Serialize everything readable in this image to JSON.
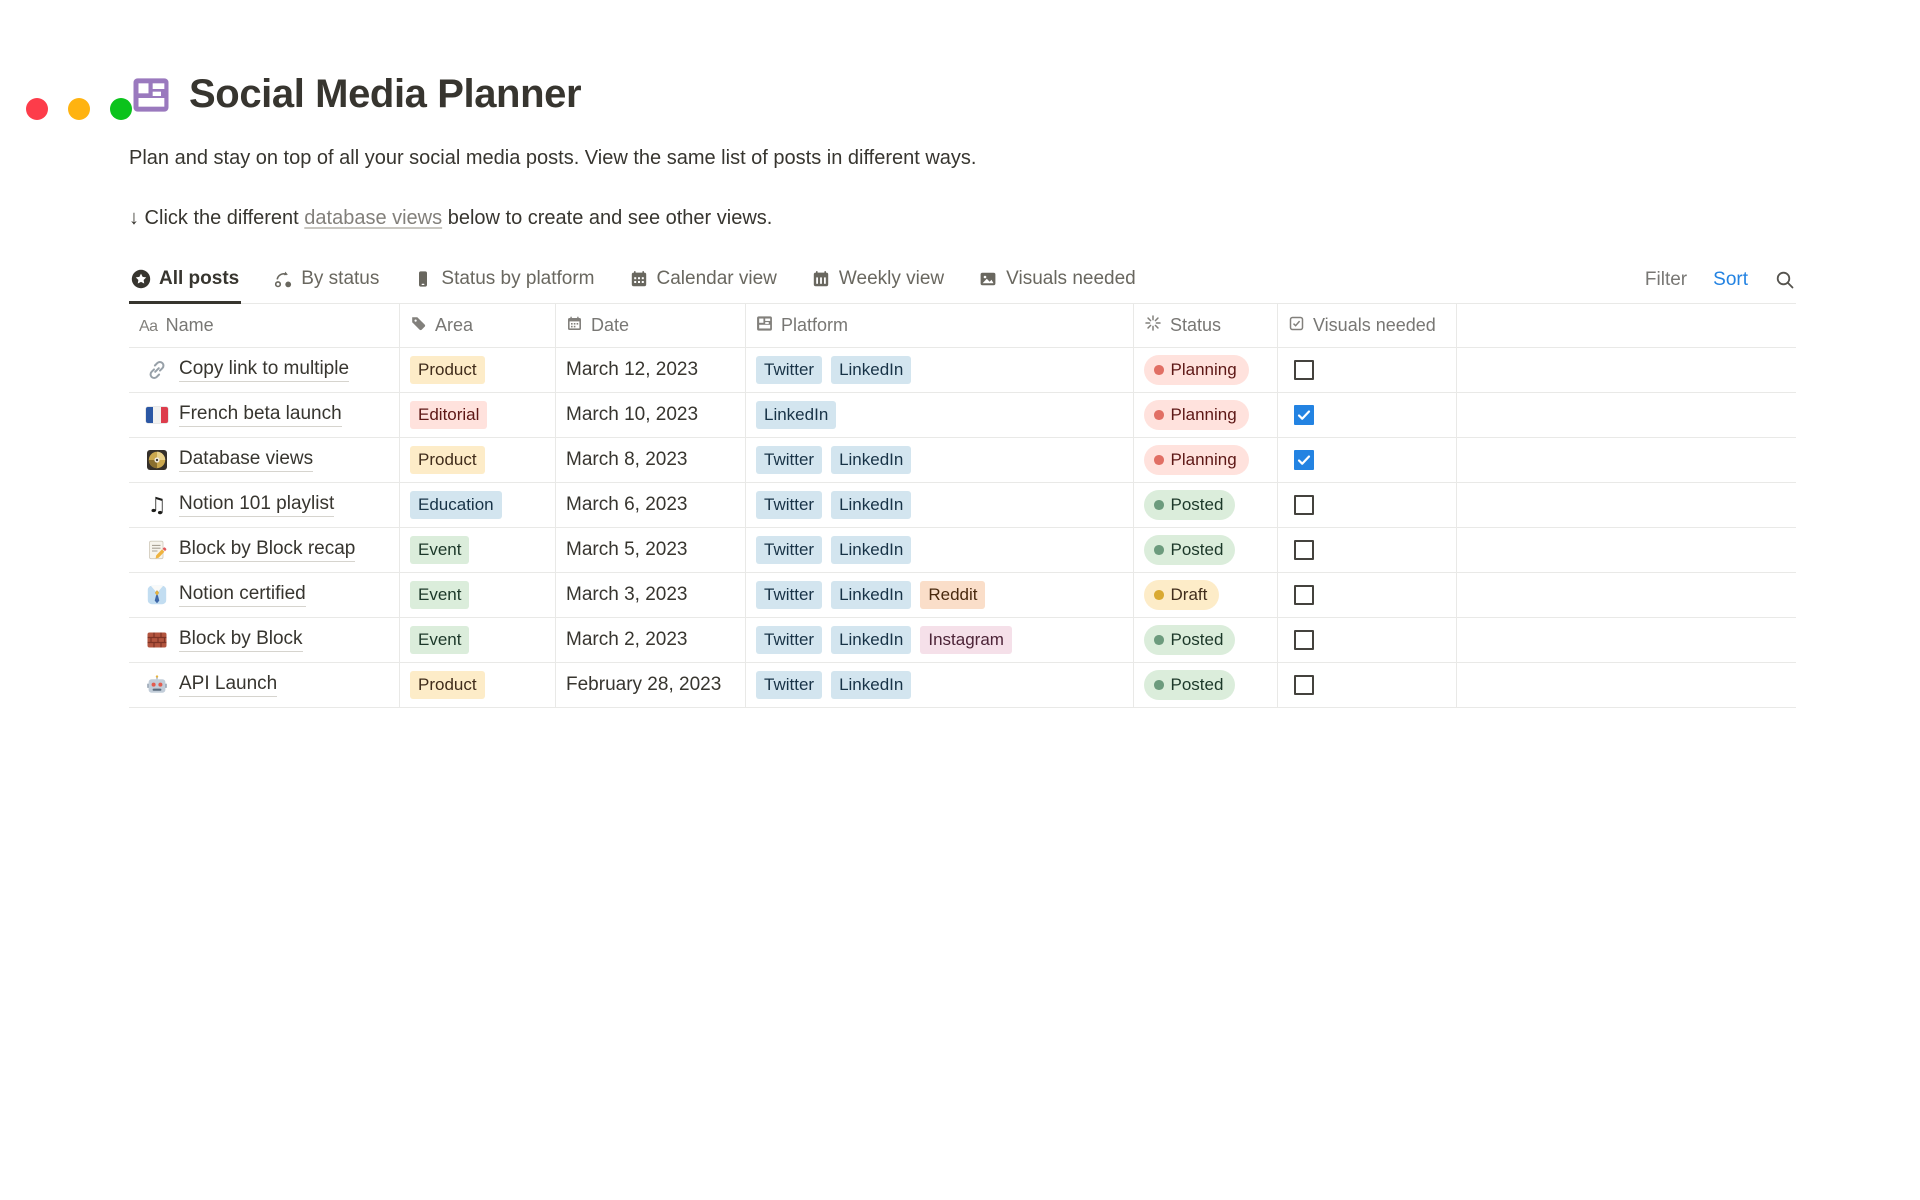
{
  "window": {
    "traffic_lights": [
      {
        "name": "close-button",
        "color": "#FD3C4A"
      },
      {
        "name": "minimize-button",
        "color": "#FFB310"
      },
      {
        "name": "zoom-button",
        "color": "#0BC31C"
      }
    ]
  },
  "page": {
    "icon": "layout-icon",
    "title": "Social Media Planner",
    "description": "Plan and stay on top of all your social media posts. View the same list of posts in different ways.",
    "callout": {
      "prefix": "↓ Click the different ",
      "link": "database views",
      "suffix": " below to create and see other views."
    }
  },
  "toolbar": {
    "tabs": [
      {
        "label": "All posts",
        "icon": "star-circle-icon",
        "active": true
      },
      {
        "label": "By status",
        "icon": "status-cycle-icon",
        "active": false
      },
      {
        "label": "Status by platform",
        "icon": "phone-icon",
        "active": false
      },
      {
        "label": "Calendar view",
        "icon": "calendar-icon",
        "active": false
      },
      {
        "label": "Weekly view",
        "icon": "calendar-week-icon",
        "active": false
      },
      {
        "label": "Visuals needed",
        "icon": "image-icon",
        "active": false
      }
    ],
    "filter_label": "Filter",
    "sort_label": "Sort"
  },
  "table": {
    "columns": [
      {
        "label": "Name",
        "icon": "aa-icon"
      },
      {
        "label": "Area",
        "icon": "tag-icon"
      },
      {
        "label": "Date",
        "icon": "calendar-small-icon"
      },
      {
        "label": "Platform",
        "icon": "layout-icon"
      },
      {
        "label": "Status",
        "icon": "spinner-icon"
      },
      {
        "label": "Visuals needed",
        "icon": "checkbox-icon"
      }
    ],
    "rows": [
      {
        "icon": {
          "name": "link-icon",
          "glyph": "🔗"
        },
        "name": "Copy link to multiple",
        "area": {
          "label": "Product",
          "color": "yellow"
        },
        "date": "March 12, 2023",
        "platforms": [
          {
            "label": "Twitter",
            "color": "blue"
          },
          {
            "label": "LinkedIn",
            "color": "blue"
          }
        ],
        "status": {
          "label": "Planning",
          "color": "red"
        },
        "visuals_needed": false
      },
      {
        "icon": {
          "name": "french-flag-icon",
          "glyph": "🇫🇷"
        },
        "name": "French beta launch",
        "area": {
          "label": "Editorial",
          "color": "red"
        },
        "date": "March 10, 2023",
        "platforms": [
          {
            "label": "LinkedIn",
            "color": "blue"
          }
        ],
        "status": {
          "label": "Planning",
          "color": "red"
        },
        "visuals_needed": true
      },
      {
        "icon": {
          "name": "disc-icon",
          "glyph": "📀"
        },
        "name": "Database views",
        "area": {
          "label": "Product",
          "color": "yellow"
        },
        "date": "March 8, 2023",
        "platforms": [
          {
            "label": "Twitter",
            "color": "blue"
          },
          {
            "label": "LinkedIn",
            "color": "blue"
          }
        ],
        "status": {
          "label": "Planning",
          "color": "red"
        },
        "visuals_needed": true
      },
      {
        "icon": {
          "name": "musical-notes-icon",
          "glyph": "🎵"
        },
        "name": "Notion 101 playlist",
        "area": {
          "label": "Education",
          "color": "blue"
        },
        "date": "March 6, 2023",
        "platforms": [
          {
            "label": "Twitter",
            "color": "blue"
          },
          {
            "label": "LinkedIn",
            "color": "blue"
          }
        ],
        "status": {
          "label": "Posted",
          "color": "green"
        },
        "visuals_needed": false
      },
      {
        "icon": {
          "name": "memo-icon",
          "glyph": "📝"
        },
        "name": "Block by Block recap",
        "area": {
          "label": "Event",
          "color": "green"
        },
        "date": "March 5, 2023",
        "platforms": [
          {
            "label": "Twitter",
            "color": "blue"
          },
          {
            "label": "LinkedIn",
            "color": "blue"
          }
        ],
        "status": {
          "label": "Posted",
          "color": "green"
        },
        "visuals_needed": false
      },
      {
        "icon": {
          "name": "necktie-icon",
          "glyph": "👔"
        },
        "name": "Notion certified",
        "area": {
          "label": "Event",
          "color": "green"
        },
        "date": "March 3, 2023",
        "platforms": [
          {
            "label": "Twitter",
            "color": "blue"
          },
          {
            "label": "LinkedIn",
            "color": "blue"
          },
          {
            "label": "Reddit",
            "color": "orange"
          }
        ],
        "status": {
          "label": "Draft",
          "color": "yellow"
        },
        "visuals_needed": false
      },
      {
        "icon": {
          "name": "bricks-icon",
          "glyph": "🧱"
        },
        "name": "Block by Block",
        "area": {
          "label": "Event",
          "color": "green"
        },
        "date": "March 2, 2023",
        "platforms": [
          {
            "label": "Twitter",
            "color": "blue"
          },
          {
            "label": "LinkedIn",
            "color": "blue"
          },
          {
            "label": "Instagram",
            "color": "pink"
          }
        ],
        "status": {
          "label": "Posted",
          "color": "green"
        },
        "visuals_needed": false
      },
      {
        "icon": {
          "name": "robot-icon",
          "glyph": "🤖"
        },
        "name": "API Launch",
        "area": {
          "label": "Product",
          "color": "yellow"
        },
        "date": "February 28, 2023",
        "platforms": [
          {
            "label": "Twitter",
            "color": "blue"
          },
          {
            "label": "LinkedIn",
            "color": "blue"
          }
        ],
        "status": {
          "label": "Posted",
          "color": "green"
        },
        "visuals_needed": false
      }
    ]
  },
  "palette": {
    "accent_blue": "#2383E2",
    "page_icon_color": "#9A79BE",
    "tag_colors": {
      "yellow": {
        "bg": "#FDECC8",
        "text": "#402C1B"
      },
      "red": {
        "bg": "#FFE2DD",
        "text": "#5D1715"
      },
      "blue": {
        "bg": "#D3E5EF",
        "text": "#183347"
      },
      "green": {
        "bg": "#DBEDDB",
        "text": "#1C3829"
      },
      "orange": {
        "bg": "#FADEC9",
        "text": "#49290E"
      },
      "pink": {
        "bg": "#F5E0E9",
        "text": "#4C2337"
      }
    },
    "status_dots": {
      "red": "#E16F64",
      "green": "#6C9B7D",
      "yellow": "#D9A931"
    }
  }
}
